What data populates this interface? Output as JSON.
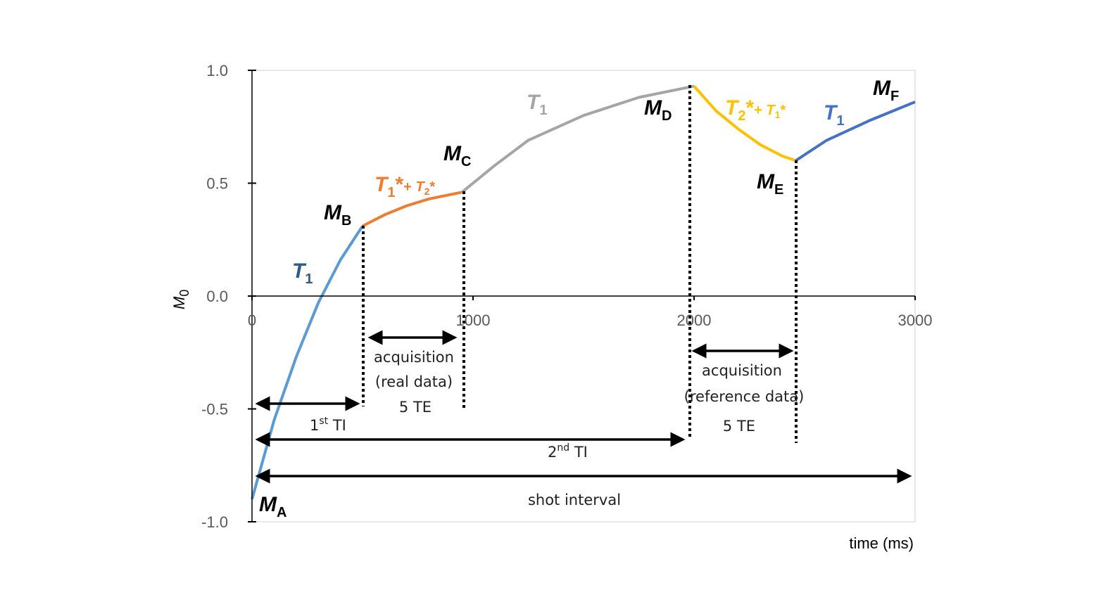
{
  "chart_data": {
    "type": "line",
    "xlabel": "time (ms)",
    "ylabel": [
      "M",
      "0"
    ],
    "xlim": [
      0,
      3000
    ],
    "xticks": [
      0,
      1000,
      2000,
      3000
    ],
    "ylim": [
      -1.0,
      1.0
    ],
    "yticks": [
      {
        "value": 1.0,
        "label": "1.0"
      },
      0.5,
      {
        "value": 0.0,
        "label": "0.0"
      },
      -0.5,
      {
        "value": -1.0,
        "label": "-1.0"
      }
    ],
    "series": [
      {
        "color": "#5b9bd5",
        "x": [
          0,
          100,
          200,
          300,
          400,
          500
        ],
        "values": [
          -0.9,
          -0.55,
          -0.27,
          -0.03,
          0.16,
          0.31
        ]
      },
      {
        "color": "#ed7d31",
        "x": [
          500,
          600,
          700,
          800,
          900,
          950
        ],
        "values": [
          0.31,
          0.36,
          0.4,
          0.43,
          0.45,
          0.46
        ]
      },
      {
        "color": "#a5a5a5",
        "x": [
          950,
          1100,
          1250,
          1500,
          1750,
          2000
        ],
        "values": [
          0.46,
          0.58,
          0.69,
          0.8,
          0.88,
          0.93
        ]
      },
      {
        "color": "#ffc000",
        "x": [
          2000,
          2100,
          2200,
          2300,
          2400,
          2460
        ],
        "values": [
          0.93,
          0.82,
          0.74,
          0.67,
          0.62,
          0.6
        ]
      },
      {
        "color": "#4472c4",
        "x": [
          2460,
          2600,
          2800,
          3000
        ],
        "values": [
          0.6,
          0.69,
          0.78,
          0.86
        ]
      }
    ],
    "annotations": {
      "ma": [
        "M",
        "A"
      ],
      "mb": [
        "M",
        "B"
      ],
      "mc": [
        "M",
        "C"
      ],
      "md": [
        "M",
        "D"
      ],
      "me": [
        "M",
        "E"
      ],
      "mf": [
        "M",
        "F"
      ],
      "t1a": [
        "T",
        "1"
      ],
      "t1b": [
        "T",
        "1"
      ],
      "t1c": [
        "T",
        "1"
      ],
      "orange": [
        "T",
        "1",
        "*",
        "+ ",
        "T",
        "2",
        "*"
      ],
      "yellow": [
        "T",
        "2",
        "*",
        "+ ",
        "T",
        "1",
        "*"
      ],
      "acq1": [
        "acquisition",
        "(real data)",
        "5 TE"
      ],
      "acq2": [
        "acquisition",
        "(reference data)",
        "5 TE"
      ],
      "ti1": [
        "1",
        "st",
        " TI"
      ],
      "ti2": [
        "2",
        "nd",
        " TI"
      ],
      "shot": "shot interval"
    }
  }
}
